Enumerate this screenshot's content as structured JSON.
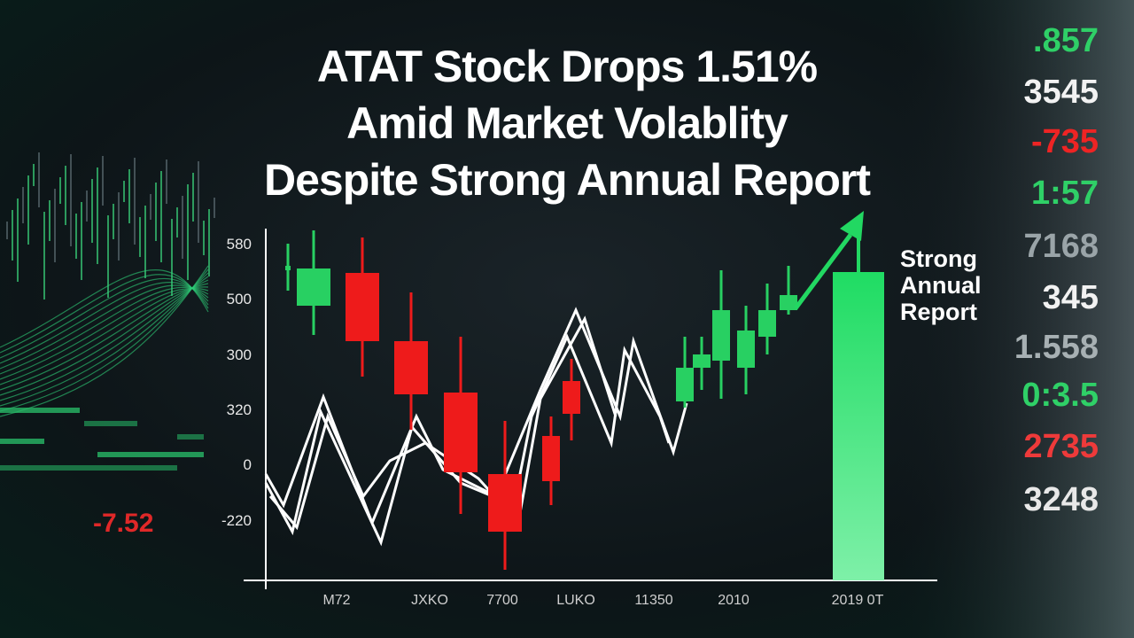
{
  "title": [
    "ATAT Stock Drops 1.51%",
    "Amid Market Volablity",
    "Despite Strong Annual Report"
  ],
  "y_labels": [
    "580",
    "500",
    "300",
    "320",
    "0",
    "-220"
  ],
  "x_labels": [
    "M72",
    "JXKO",
    "7700",
    "LUKO",
    "11350",
    "2010",
    "2019 0T"
  ],
  "annotation": [
    "Strong",
    "Annual",
    "Report"
  ],
  "ticker_numbers": [
    ".857",
    "3545",
    "-735",
    "1:57",
    "7168",
    "345",
    "1.558",
    "0:3.5",
    "2735",
    "3248"
  ],
  "left_numbers": [
    "-7.52"
  ]
}
